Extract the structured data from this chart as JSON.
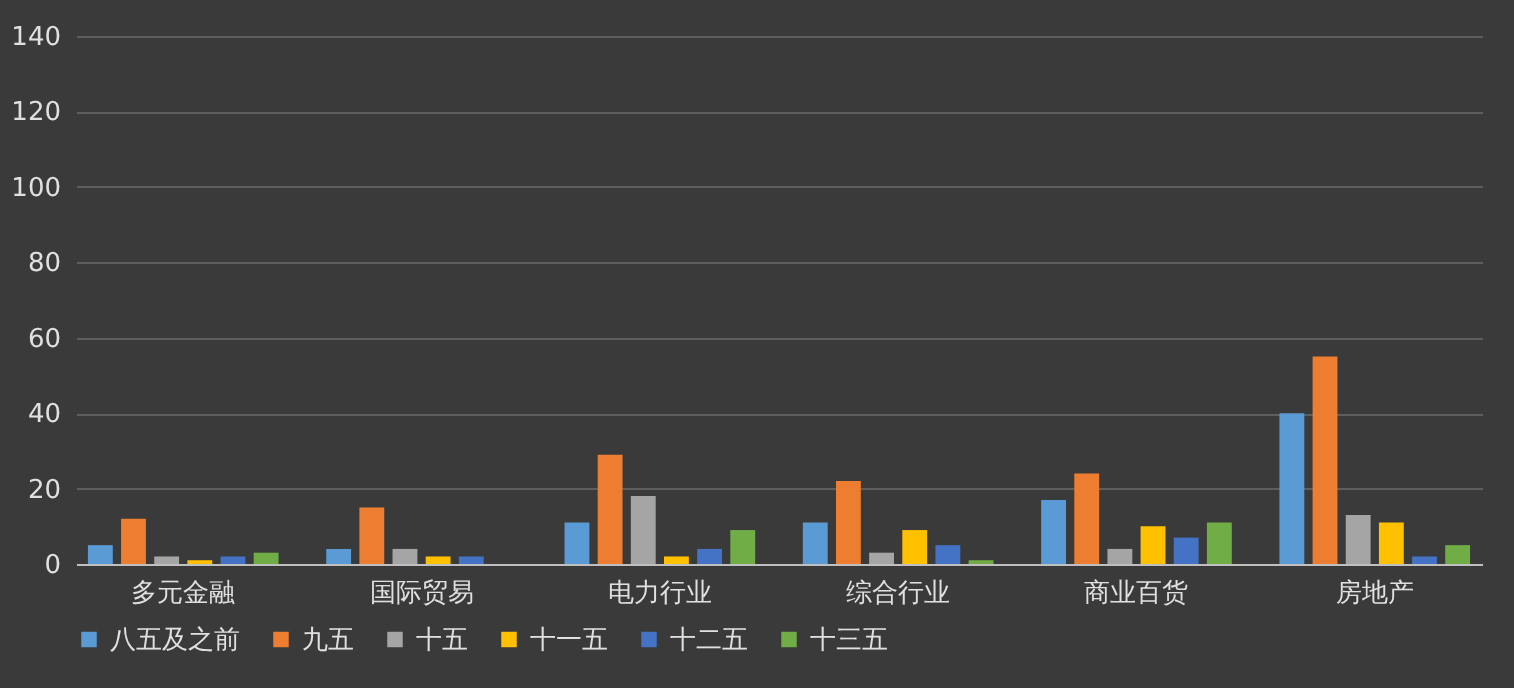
{
  "chart_data": {
    "type": "bar",
    "categories": [
      "多元金融",
      "国际贸易",
      "电力行业",
      "综合行业",
      "商业百货",
      "房地产"
    ],
    "series": [
      {
        "name": "八五及之前",
        "color": "#5b9bd5",
        "values": [
          5,
          4,
          11,
          11,
          17,
          40
        ]
      },
      {
        "name": "九五",
        "color": "#ed7d31",
        "values": [
          12,
          15,
          29,
          22,
          24,
          55
        ]
      },
      {
        "name": "十五",
        "color": "#a5a5a5",
        "values": [
          2,
          4,
          18,
          3,
          4,
          13
        ]
      },
      {
        "name": "十一五",
        "color": "#ffc000",
        "values": [
          1,
          2,
          2,
          9,
          10,
          11
        ]
      },
      {
        "name": "十二五",
        "color": "#4472c4",
        "values": [
          2,
          2,
          4,
          5,
          7,
          2
        ]
      },
      {
        "name": "十三五",
        "color": "#70ad47",
        "values": [
          3,
          0,
          9,
          1,
          11,
          5
        ]
      }
    ],
    "ylim": [
      0,
      140
    ],
    "yticks": [
      0,
      20,
      40,
      60,
      80,
      100,
      120,
      140
    ],
    "grid": "y",
    "legend": "bottom"
  }
}
